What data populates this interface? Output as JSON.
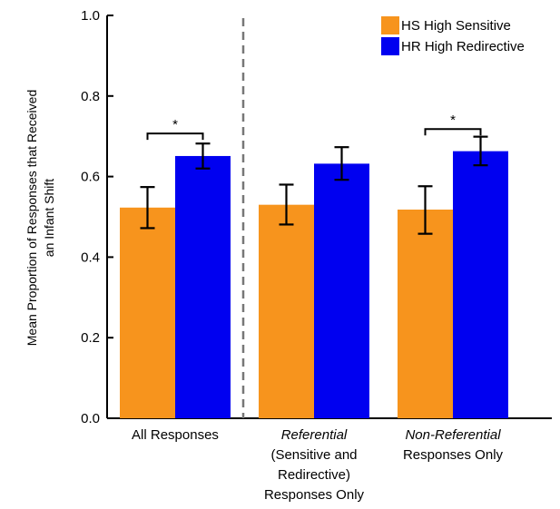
{
  "chart_data": {
    "type": "bar",
    "ylabel": "Mean Proportion of Responses that Received an Infant Shift",
    "ylabel_lines": [
      "Mean Proportion of Responses that Received",
      "an Infant Shift"
    ],
    "ylim": [
      0,
      1.0
    ],
    "yticks": [
      "0.0",
      "0.2",
      "0.4",
      "0.6",
      "0.8",
      "1.0"
    ],
    "legend_position": "top-right",
    "categories": [
      {
        "lines": [
          {
            "text": "All Responses",
            "italic": false
          }
        ]
      },
      {
        "lines": [
          {
            "text": "Referential",
            "italic": true
          },
          {
            "text": "(Sensitive and",
            "italic": false
          },
          {
            "text": "Redirective)",
            "italic": false
          },
          {
            "text": "Responses Only",
            "italic": false
          }
        ]
      },
      {
        "lines": [
          {
            "text": "Non-Referential",
            "italic": true
          },
          {
            "text": "Responses Only",
            "italic": false
          }
        ]
      }
    ],
    "series": [
      {
        "name": "HS High Sensitive",
        "color": "#F7941D",
        "values": [
          0.523,
          0.53,
          0.518
        ],
        "err_low": [
          0.472,
          0.481,
          0.458
        ],
        "err_high": [
          0.574,
          0.58,
          0.576
        ]
      },
      {
        "name": "HR High Redirective",
        "color": "#0000F0",
        "values": [
          0.651,
          0.632,
          0.663
        ],
        "err_low": [
          0.62,
          0.592,
          0.628
        ],
        "err_high": [
          0.682,
          0.673,
          0.699
        ]
      }
    ],
    "significance": [
      {
        "category_index": 0,
        "label": "*",
        "bracket_y": 0.707
      },
      {
        "category_index": 2,
        "label": "*",
        "bracket_y": 0.718
      }
    ],
    "divider_after_category": 0
  }
}
